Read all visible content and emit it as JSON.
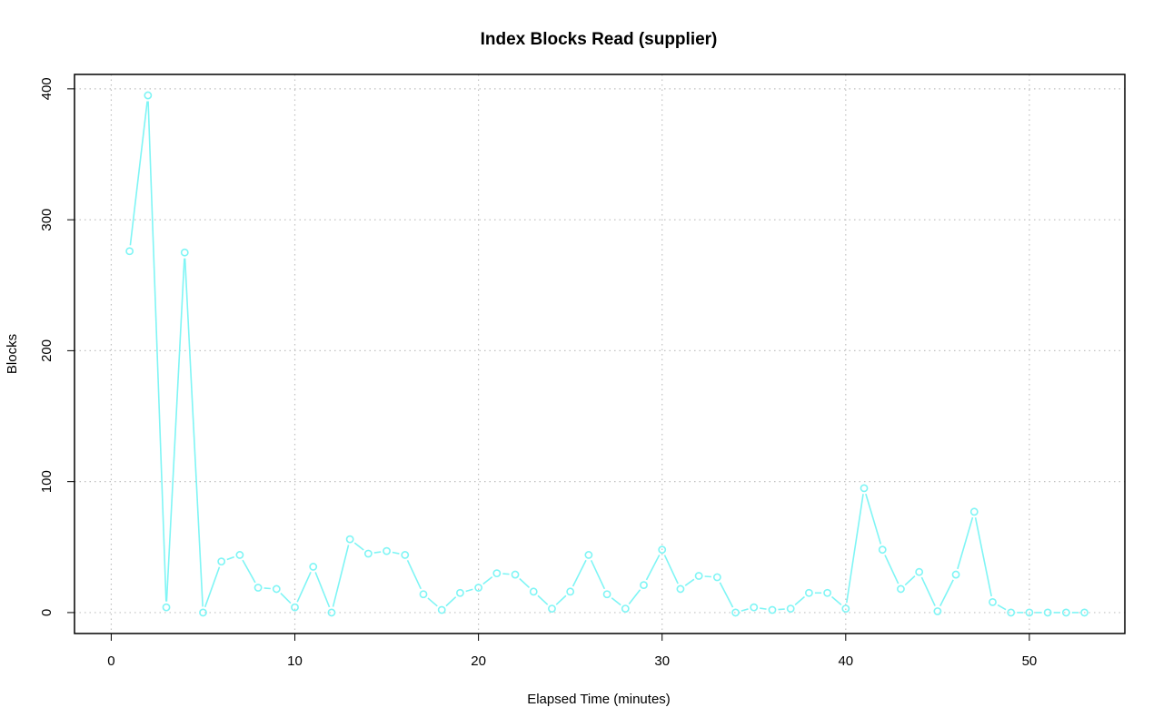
{
  "chart_data": {
    "type": "line",
    "title": "Index Blocks Read (supplier)",
    "xlabel": "Elapsed Time (minutes)",
    "ylabel": "Blocks",
    "xlim": [
      -2,
      55.2
    ],
    "ylim": [
      -16,
      411
    ],
    "x_ticks": [
      0,
      10,
      20,
      30,
      40,
      50
    ],
    "y_ticks": [
      0,
      100,
      200,
      300,
      400
    ],
    "grid": true,
    "legend": "none",
    "colors": {
      "series": "#7ff5f5",
      "grid": "#c0c0c0",
      "axis": "#000000"
    },
    "series": [
      {
        "x": [
          1,
          2,
          3,
          4,
          5,
          6,
          7,
          8,
          9,
          10,
          11,
          12,
          13,
          14,
          15,
          16,
          17,
          18,
          19,
          20,
          21,
          22,
          23,
          24,
          25,
          26,
          27,
          28,
          29,
          30,
          31,
          32,
          33,
          34,
          35,
          36,
          37,
          38,
          39,
          40,
          41,
          42,
          43,
          44,
          45,
          46,
          47,
          48,
          49,
          50,
          51,
          52,
          53
        ],
        "values": [
          276,
          395,
          4,
          275,
          0,
          39,
          44,
          19,
          18,
          4,
          35,
          0,
          56,
          45,
          47,
          44,
          14,
          2,
          15,
          19,
          30,
          29,
          16,
          3,
          16,
          44,
          14,
          3,
          21,
          48,
          18,
          28,
          27,
          0,
          4,
          2,
          3,
          15,
          15,
          3,
          95,
          48,
          18,
          31,
          1,
          29,
          77,
          8,
          0,
          0,
          0,
          0,
          0
        ]
      }
    ]
  }
}
